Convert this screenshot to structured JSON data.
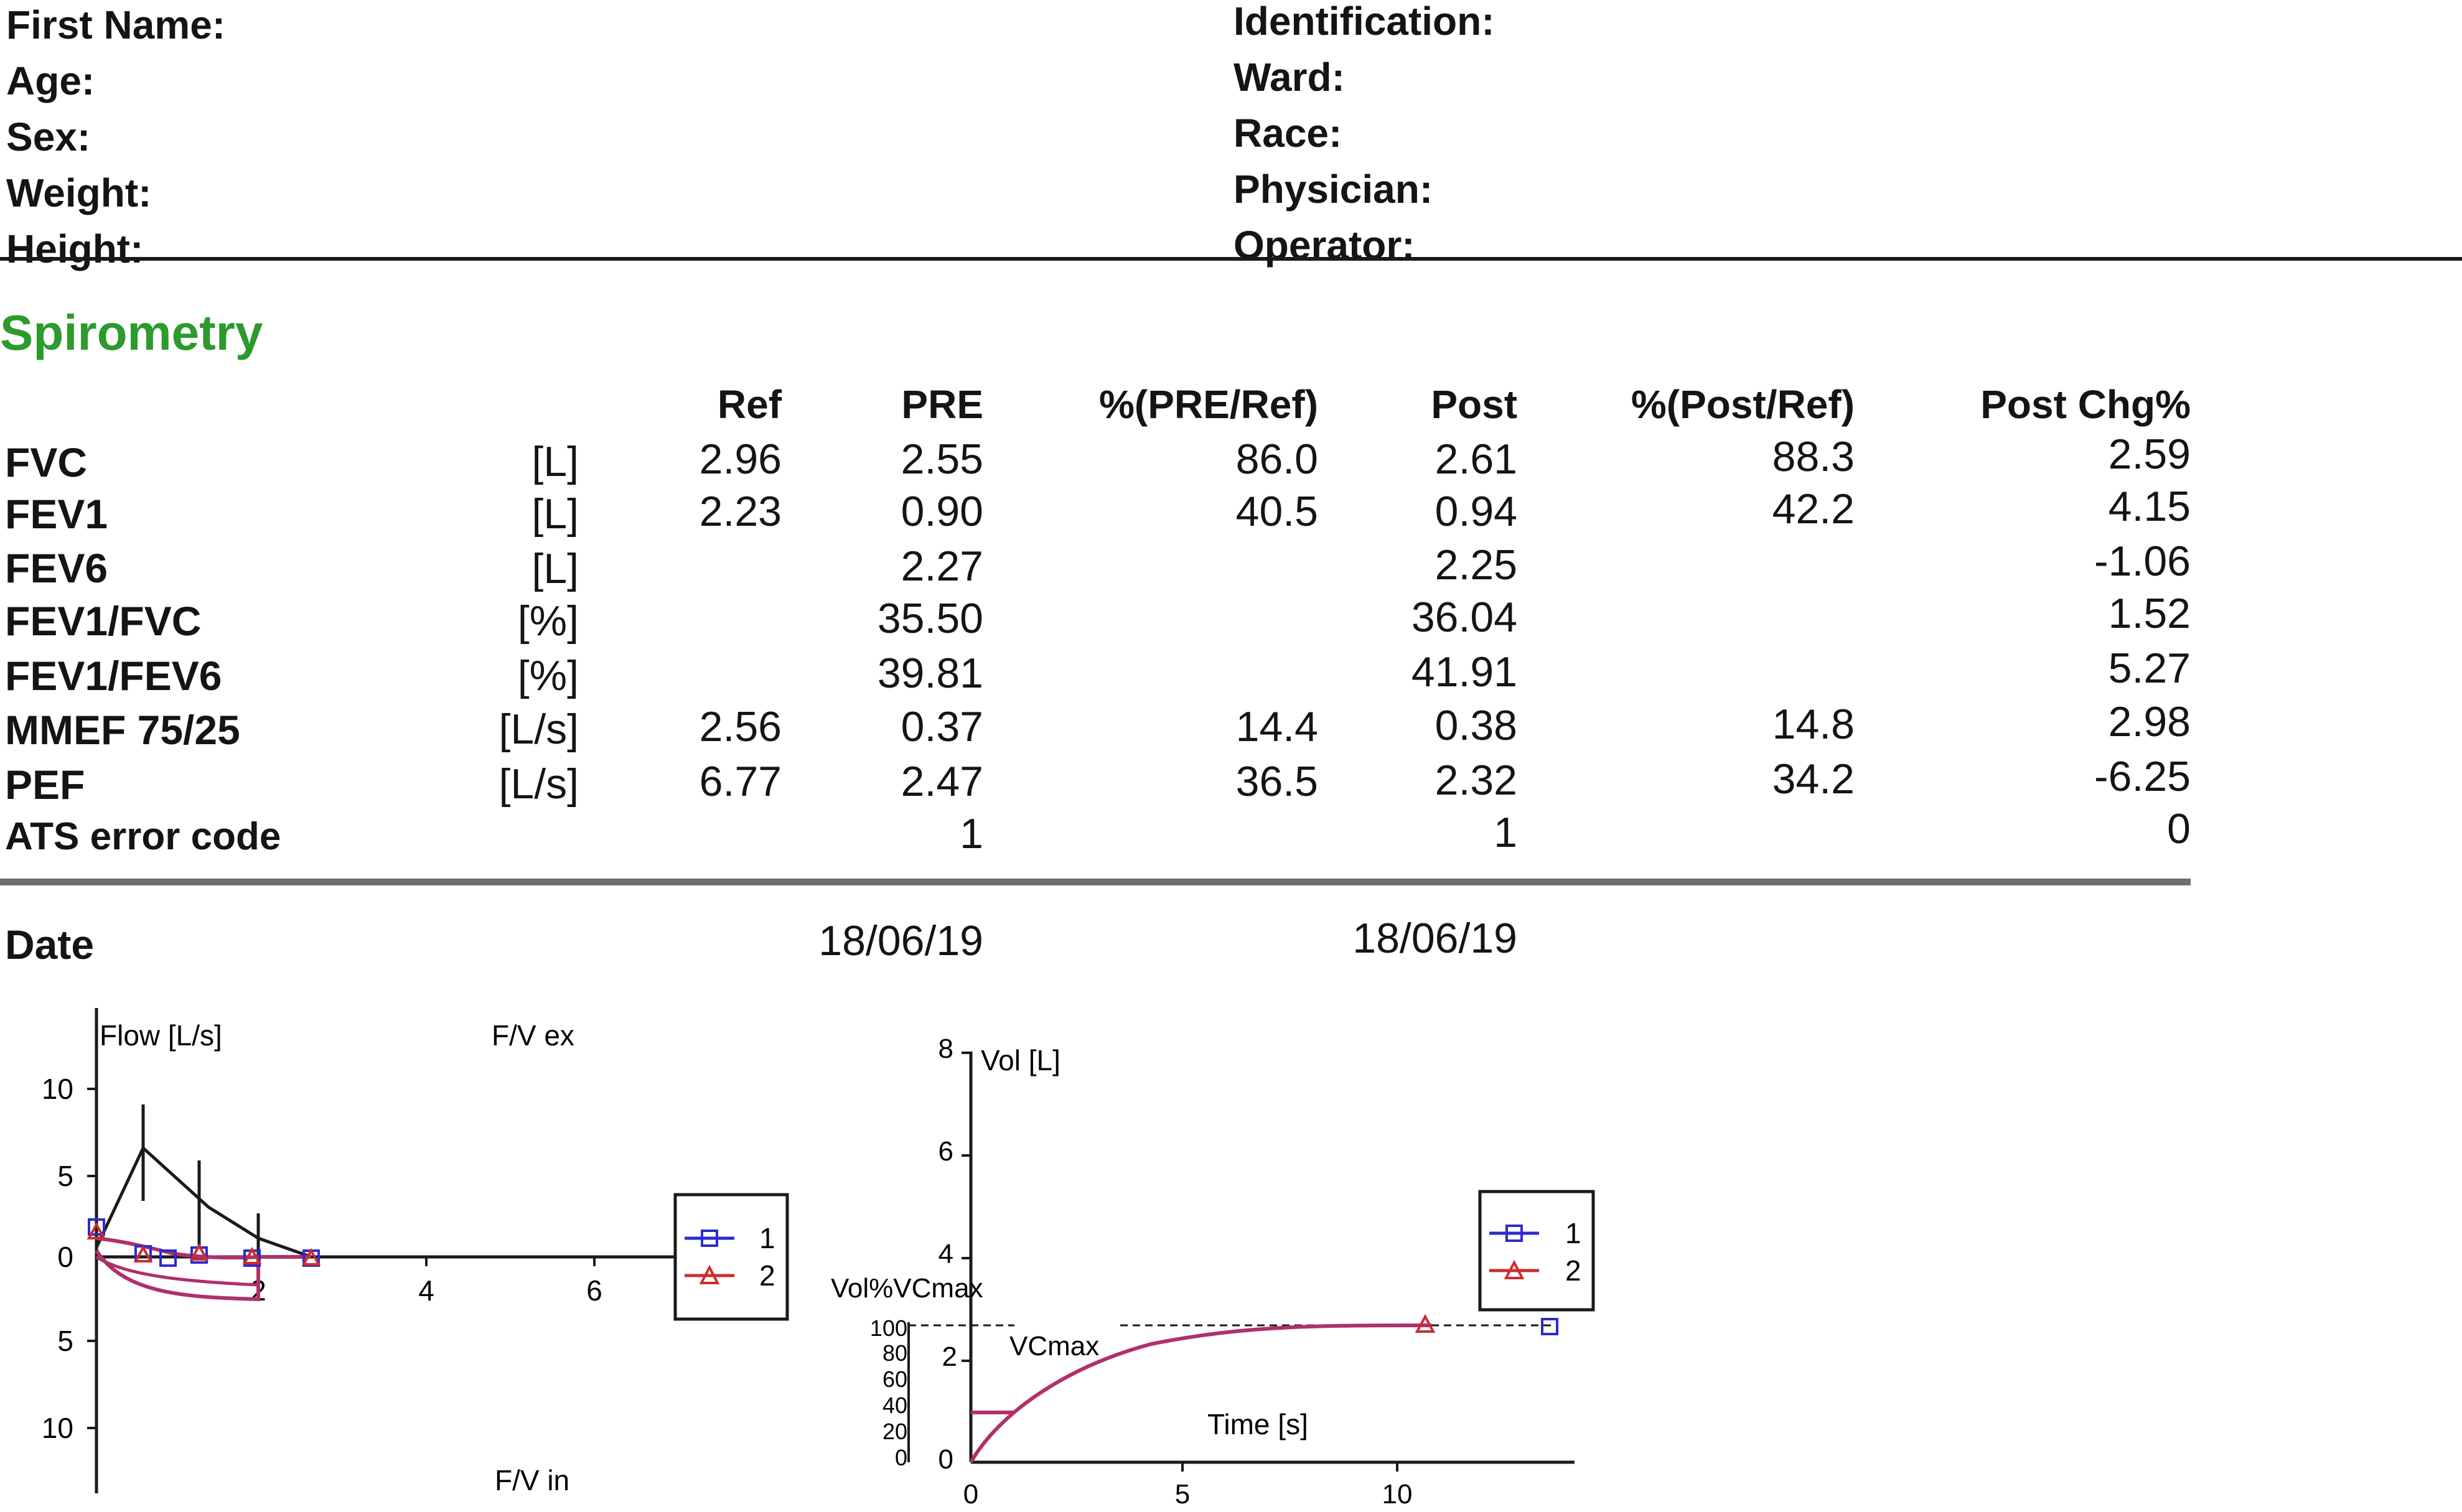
{
  "patient": {
    "left": [
      "First Name:",
      "Age:",
      "Sex:",
      "Weight:",
      "Height:"
    ],
    "right": [
      "Identification:",
      "Ward:",
      "Race:",
      "Physician:",
      "Operator:"
    ]
  },
  "section_title": "Spirometry",
  "table": {
    "headers": [
      "Ref",
      "PRE",
      "%(PRE/Ref)",
      "Post",
      "%(Post/Ref)",
      "Post Chg%"
    ],
    "rows": [
      {
        "name": "FVC",
        "unit": "[L]",
        "ref": "2.96",
        "pre": "2.55",
        "pre_pct": "86.0",
        "post": "2.61",
        "post_pct": "88.3",
        "chg": "2.59"
      },
      {
        "name": "FEV1",
        "unit": "[L]",
        "ref": "2.23",
        "pre": "0.90",
        "pre_pct": "40.5",
        "post": "0.94",
        "post_pct": "42.2",
        "chg": "4.15"
      },
      {
        "name": "FEV6",
        "unit": "[L]",
        "ref": "",
        "pre": "2.27",
        "pre_pct": "",
        "post": "2.25",
        "post_pct": "",
        "chg": "-1.06"
      },
      {
        "name": "FEV1/FVC",
        "unit": "[%]",
        "ref": "",
        "pre": "35.50",
        "pre_pct": "",
        "post": "36.04",
        "post_pct": "",
        "chg": "1.52"
      },
      {
        "name": "FEV1/FEV6",
        "unit": "[%]",
        "ref": "",
        "pre": "39.81",
        "pre_pct": "",
        "post": "41.91",
        "post_pct": "",
        "chg": "5.27"
      },
      {
        "name": "MMEF 75/25",
        "unit": "[L/s]",
        "ref": "2.56",
        "pre": "0.37",
        "pre_pct": "14.4",
        "post": "0.38",
        "post_pct": "14.8",
        "chg": "2.98"
      },
      {
        "name": "PEF",
        "unit": "[L/s]",
        "ref": "6.77",
        "pre": "2.47",
        "pre_pct": "36.5",
        "post": "2.32",
        "post_pct": "34.2",
        "chg": "-6.25"
      },
      {
        "name": "ATS error code",
        "unit": "",
        "ref": "",
        "pre": "1",
        "pre_pct": "",
        "post": "1",
        "post_pct": "",
        "chg": "0"
      }
    ],
    "date_label": "Date",
    "date_pre": "18/06/19",
    "date_post": "18/06/19"
  },
  "flow_volume": {
    "ylabel": "Flow [L/s]",
    "label_top": "F/V ex",
    "label_bottom": "F/V in",
    "y_ticks": [
      "10",
      "5",
      "0",
      "5",
      "10"
    ],
    "x_ticks": [
      "2",
      "4",
      "6"
    ],
    "legend": [
      "1",
      "2"
    ]
  },
  "volume_time": {
    "ylabel": "Vol [L]",
    "xlabel": "Time [s]",
    "vc_axis_label": "Vol%VCmax",
    "vcmax_label": "VCmax",
    "y_ticks": [
      "8",
      "6",
      "4",
      "2",
      "0"
    ],
    "vc_ticks": [
      "100",
      "80",
      "60",
      "40",
      "20",
      "0"
    ],
    "x_ticks": [
      "0",
      "5",
      "10"
    ],
    "legend": [
      "1",
      "2"
    ]
  },
  "colors": {
    "title_green": "#2c9a2c",
    "series1_blue": "#2c2ccc",
    "series2_red": "#cc2c2c",
    "curve_magenta": "#b0306a"
  }
}
